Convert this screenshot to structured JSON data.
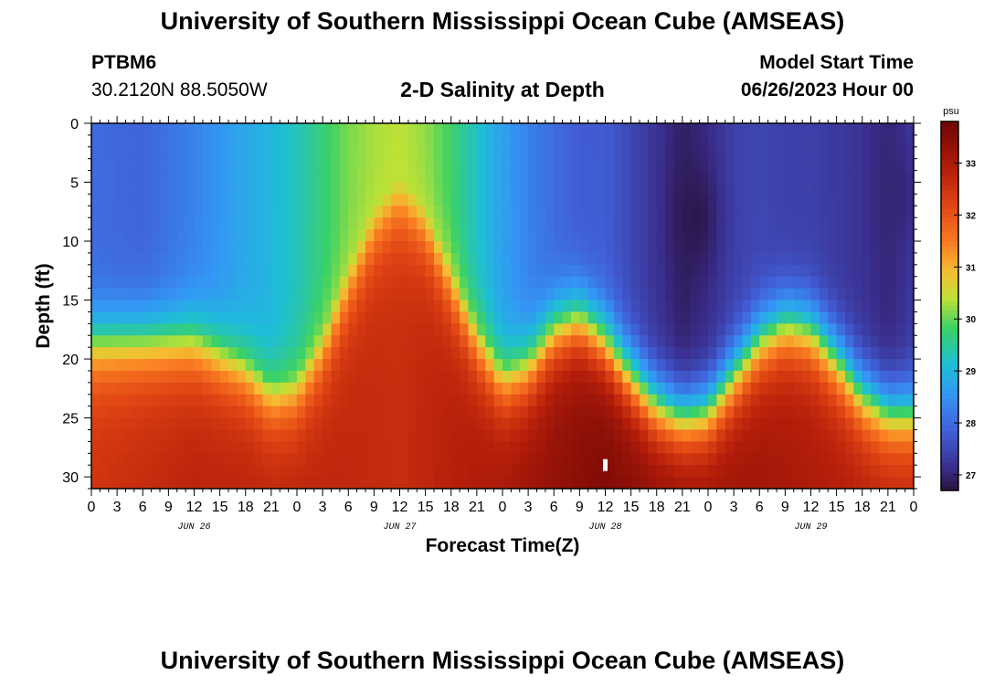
{
  "header": {
    "title": "University of Southern Mississippi Ocean Cube (AMSEAS)",
    "station_id": "PTBM6",
    "station_coords": "30.2120N  88.5050W",
    "plot_title": "2-D Salinity at Depth",
    "model_start_label": "Model Start Time",
    "model_start_value": "06/26/2023 Hour 00"
  },
  "footer": {
    "title": "University of Southern Mississippi Ocean Cube (AMSEAS)"
  },
  "chart_data": {
    "type": "heatmap",
    "title": "2-D Salinity at Depth",
    "xlabel": "Forecast Time(Z)",
    "ylabel": "Depth (ft)",
    "x_range_hours": [
      0,
      96
    ],
    "x_tick_step_hours": 3,
    "x_tick_labels": [
      "0",
      "3",
      "6",
      "9",
      "12",
      "15",
      "18",
      "21",
      "0",
      "3",
      "6",
      "9",
      "12",
      "15",
      "18",
      "21",
      "0",
      "3",
      "6",
      "9",
      "12",
      "15",
      "18",
      "21",
      "0",
      "3",
      "6",
      "9",
      "12",
      "15",
      "18",
      "21",
      "0"
    ],
    "day_labels": [
      {
        "label": "JUN 26",
        "hour": 12
      },
      {
        "label": "JUN 27",
        "hour": 36
      },
      {
        "label": "JUN 28",
        "hour": 60
      },
      {
        "label": "JUN 29",
        "hour": 84
      }
    ],
    "y_range_ft": [
      0,
      31
    ],
    "y_ticks": [
      0,
      5,
      10,
      15,
      20,
      25,
      30
    ],
    "colorbar": {
      "unit": "psu",
      "range": [
        26.7,
        33.8
      ],
      "ticks": [
        27,
        28,
        29,
        30,
        31,
        32,
        33
      ]
    },
    "halocline_depth_ft": [
      [
        0,
        17.2
      ],
      [
        12,
        17.2
      ],
      [
        18,
        19.5
      ],
      [
        21,
        21.8
      ],
      [
        24,
        21.2
      ],
      [
        27,
        17.5
      ],
      [
        30,
        12
      ],
      [
        33,
        7
      ],
      [
        36,
        4.5
      ],
      [
        39,
        7
      ],
      [
        42,
        12
      ],
      [
        45,
        17
      ],
      [
        48,
        20.5
      ],
      [
        51,
        19.5
      ],
      [
        54,
        16.5
      ],
      [
        57,
        15.5
      ],
      [
        60,
        17.5
      ],
      [
        63,
        20.5
      ],
      [
        66,
        23
      ],
      [
        69,
        24
      ],
      [
        72,
        23.5
      ],
      [
        75,
        20.5
      ],
      [
        78,
        17.5
      ],
      [
        81,
        16
      ],
      [
        84,
        16.5
      ],
      [
        87,
        19
      ],
      [
        90,
        22
      ],
      [
        93,
        23.5
      ],
      [
        96,
        23.5
      ]
    ],
    "surface_salinity_psu": [
      [
        0,
        28.0
      ],
      [
        6,
        27.9
      ],
      [
        12,
        28.3
      ],
      [
        18,
        28.8
      ],
      [
        21,
        29.0
      ],
      [
        24,
        29.3
      ],
      [
        27,
        29.7
      ],
      [
        30,
        30.1
      ],
      [
        33,
        30.3
      ],
      [
        36,
        30.4
      ],
      [
        39,
        30.2
      ],
      [
        42,
        29.8
      ],
      [
        45,
        29.2
      ],
      [
        48,
        28.7
      ],
      [
        51,
        28.3
      ],
      [
        54,
        28.0
      ],
      [
        57,
        27.8
      ],
      [
        60,
        27.8
      ],
      [
        63,
        27.5
      ],
      [
        66,
        27.2
      ],
      [
        69,
        26.9
      ],
      [
        72,
        27.1
      ],
      [
        75,
        27.4
      ],
      [
        78,
        27.5
      ],
      [
        81,
        27.4
      ],
      [
        84,
        27.4
      ],
      [
        87,
        27.3
      ],
      [
        90,
        27.2
      ],
      [
        93,
        27.0
      ],
      [
        96,
        27.3
      ]
    ],
    "bottom_salinity_psu": [
      [
        0,
        32.5
      ],
      [
        12,
        32.8
      ],
      [
        24,
        32.8
      ],
      [
        36,
        32.6
      ],
      [
        48,
        33.1
      ],
      [
        60,
        33.6
      ],
      [
        72,
        33.3
      ],
      [
        84,
        33.0
      ],
      [
        96,
        32.8
      ]
    ],
    "fresh_cores": [
      {
        "hour": 70.5,
        "depth_ft": 8,
        "min_psu": 26.8
      },
      {
        "hour": 94,
        "depth_ft": 6,
        "min_psu": 27.0
      }
    ],
    "marker": {
      "hour": 60,
      "depth_ft": 29
    }
  }
}
